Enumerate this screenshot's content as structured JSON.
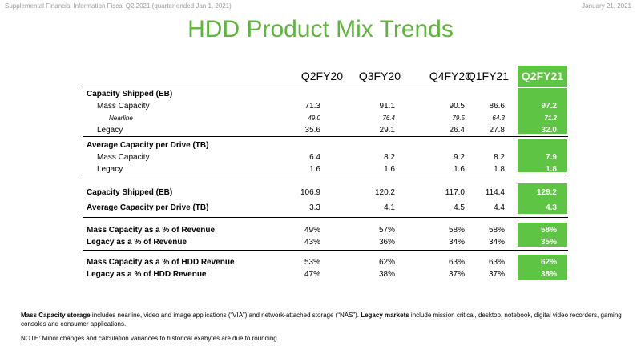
{
  "header": {
    "left": "Supplemental Financial Information Fiscal Q2 2021 (quarter ended Jan 1, 2021)",
    "right": "January 21, 2021"
  },
  "title": "HDD Product Mix Trends",
  "columns": [
    "Q2FY20",
    "Q3FY20",
    "Q4FY20",
    "Q1FY21",
    "Q2FY21"
  ],
  "sections": [
    {
      "rows": [
        {
          "label": "Capacity Shipped (EB)",
          "style": "bold",
          "values": [
            "",
            "",
            "",
            "",
            ""
          ]
        },
        {
          "label": "Mass Capacity",
          "style": "sub",
          "values": [
            "71.3",
            "91.1",
            "90.5",
            "86.6",
            "97.2"
          ]
        },
        {
          "label": "Nearline",
          "style": "note",
          "values": [
            "49.0",
            "76.4",
            "79.5",
            "64.3",
            "71.2"
          ]
        },
        {
          "label": "Legacy",
          "style": "sub",
          "values": [
            "35.6",
            "29.1",
            "26.4",
            "27.8",
            "32.0"
          ]
        }
      ]
    },
    {
      "rows": [
        {
          "label": "Average Capacity per Drive (TB)",
          "style": "bold",
          "values": [
            "",
            "",
            "",
            "",
            ""
          ]
        },
        {
          "label": "Mass Capacity",
          "style": "sub",
          "values": [
            "6.4",
            "8.2",
            "9.2",
            "8.2",
            "7.9"
          ]
        },
        {
          "label": "Legacy",
          "style": "sub",
          "values": [
            "1.6",
            "1.6",
            "1.6",
            "1.8",
            "1.8"
          ]
        }
      ]
    },
    {
      "rows": [
        {
          "label": "Capacity Shipped (EB)",
          "style": "bold",
          "values": [
            "106.9",
            "120.2",
            "117.0",
            "114.4",
            "129.2"
          ]
        },
        {
          "label": "Average Capacity per Drive (TB)",
          "style": "bold",
          "values": [
            "3.3",
            "4.1",
            "4.5",
            "4.4",
            "4.3"
          ]
        }
      ]
    },
    {
      "rows": [
        {
          "label": "Mass Capacity as a % of Revenue",
          "style": "bold",
          "values": [
            "49%",
            "57%",
            "58%",
            "58%",
            "58%"
          ]
        },
        {
          "label": "Legacy as a % of Revenue",
          "style": "bold",
          "values": [
            "43%",
            "36%",
            "34%",
            "34%",
            "35%"
          ]
        }
      ]
    },
    {
      "rows": [
        {
          "label": "Mass Capacity as a % of HDD Revenue",
          "style": "bold",
          "values": [
            "53%",
            "62%",
            "63%",
            "63%",
            "62%"
          ]
        },
        {
          "label": "Legacy as a % of HDD Revenue",
          "style": "bold",
          "values": [
            "47%",
            "38%",
            "37%",
            "37%",
            "38%"
          ]
        }
      ]
    }
  ],
  "footnote": {
    "lead_bold": "Mass Capacity storage",
    "lead_text": " includes nearline, video and image applications (“VIA”) and network-attached storage (“NAS”). ",
    "second_bold": "Legacy markets",
    "second_text": " include mission critical, desktop, notebook, digital video recorders, gaming consoles and consumer applications.",
    "note": "NOTE: Minor changes and calculation variances to historical exabytes are due to rounding."
  },
  "colors": {
    "accent": "#5db53a",
    "highlight": "#5ec443"
  }
}
